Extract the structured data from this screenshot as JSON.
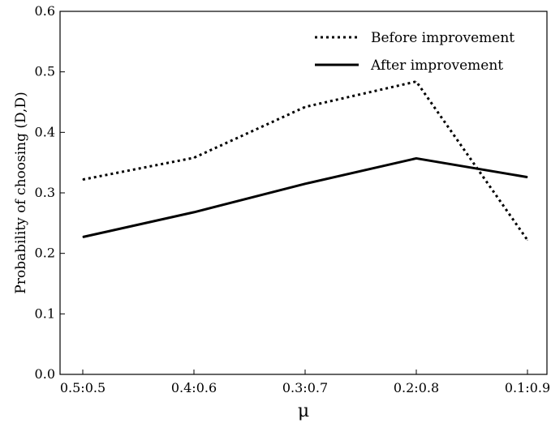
{
  "chart_data": {
    "type": "line",
    "categories": [
      "0.5:0.5",
      "0.4:0.6",
      "0.3:0.7",
      "0.2:0.8",
      "0.1:0.9"
    ],
    "series": [
      {
        "name": "Before improvement",
        "values": [
          0.322,
          0.358,
          0.442,
          0.484,
          0.222
        ],
        "style": "dotted",
        "color": "#000000"
      },
      {
        "name": "After improvement",
        "values": [
          0.227,
          0.268,
          0.315,
          0.357,
          0.326
        ],
        "style": "solid",
        "color": "#000000"
      }
    ],
    "xlabel": "μ",
    "ylabel": "Probability of choosing (D,D)",
    "ylim": [
      0.0,
      0.6
    ],
    "yticks": [
      "0.0",
      "0.1",
      "0.2",
      "0.3",
      "0.4",
      "0.5",
      "0.6"
    ],
    "grid": false,
    "legend_position": "top-right"
  }
}
